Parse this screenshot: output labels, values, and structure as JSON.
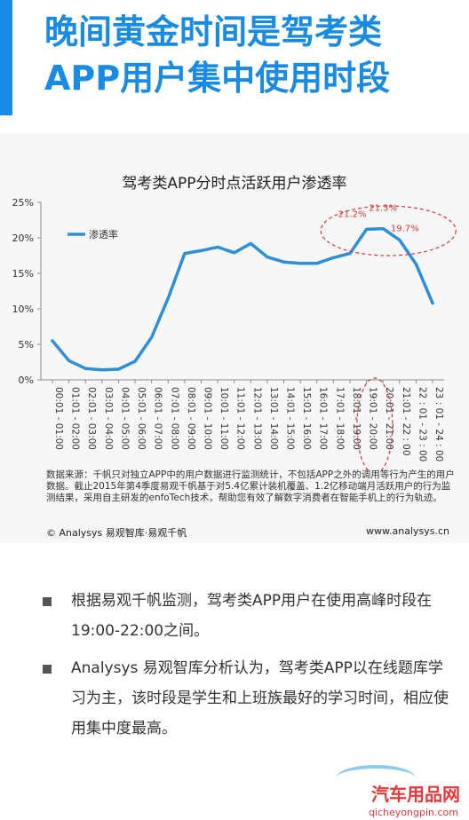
{
  "title": {
    "line1": "晚间黄金时间是驾考类",
    "line2": "APP用户集中使用时段"
  },
  "chart_data": {
    "type": "line",
    "title": "驾考类APP分时点活跃用户渗透率",
    "categories": [
      "00:01 - 01:00",
      "01:01 - 02:00",
      "02:01 - 03:00",
      "03:01 - 04:00",
      "04:01 - 05:00",
      "05:01 - 06:00",
      "06:01 - 07:00",
      "07:01 - 08:00",
      "08:01 - 09:00",
      "09:01 - 10:00",
      "10:01 - 11:00",
      "11:01 - 12:00",
      "12:01 - 13:00",
      "13:01 - 14:00",
      "14:01 - 15:00",
      "15:01 - 16:00",
      "16:01 - 17:00",
      "17:01 - 18:00",
      "18:01 - 19:00",
      "19:01 - 20:00",
      "20:01 - 21:00",
      "21:01 - 22 : 00",
      "22 : 01 - 23 : 00",
      "23 : 01 - 24 : 00"
    ],
    "series": [
      {
        "name": "渗透率",
        "color": "#2e8fd8",
        "values": [
          5.5,
          2.7,
          1.6,
          1.4,
          1.5,
          2.6,
          6.0,
          11.5,
          17.8,
          18.2,
          18.7,
          17.9,
          19.2,
          17.3,
          16.6,
          16.4,
          16.4,
          17.2,
          17.8,
          21.2,
          21.3,
          19.7,
          16.3,
          10.8
        ]
      }
    ],
    "yticks": [
      "0%",
      "5%",
      "10%",
      "15%",
      "20%",
      "25%"
    ],
    "ylim": [
      0,
      25
    ],
    "annotations": [
      {
        "index": 19,
        "label": "21.2%"
      },
      {
        "index": 20,
        "label": "21.3%"
      },
      {
        "index": 21,
        "label": "19.7%"
      }
    ],
    "highlight_color": "#d23a3a",
    "legend_position": "top-left"
  },
  "source_note": "数据来源：千帆只对独立APP中的用户数据进行监测统计，不包括APP之外的调用等行为产生的用户数据。截止2015年第4季度易观千帆基于对5.4亿累计装机覆盖、1.2亿移动端月活跃用户的行为监测结果，采用自主研发的enfoTech技术，帮助您有效了解数字消费者在智能手机上的行为轨迹。",
  "footer": {
    "copyright": "© Analysys 易观智库·易观千帆",
    "url": "www.analysys.cn"
  },
  "bullets": [
    "根据易观千帆监测，驾考类APP用户在使用高峰时段在19:00-22:00之间。",
    " Analysys 易观智库分析认为，驾考类APP以在线题库学习为主，该时段是学生和上班族最好的学习时间，相应使用集中度最高。"
  ],
  "watermark": {
    "brand": "汽车用品网",
    "url": "qicheyongpin.com"
  }
}
